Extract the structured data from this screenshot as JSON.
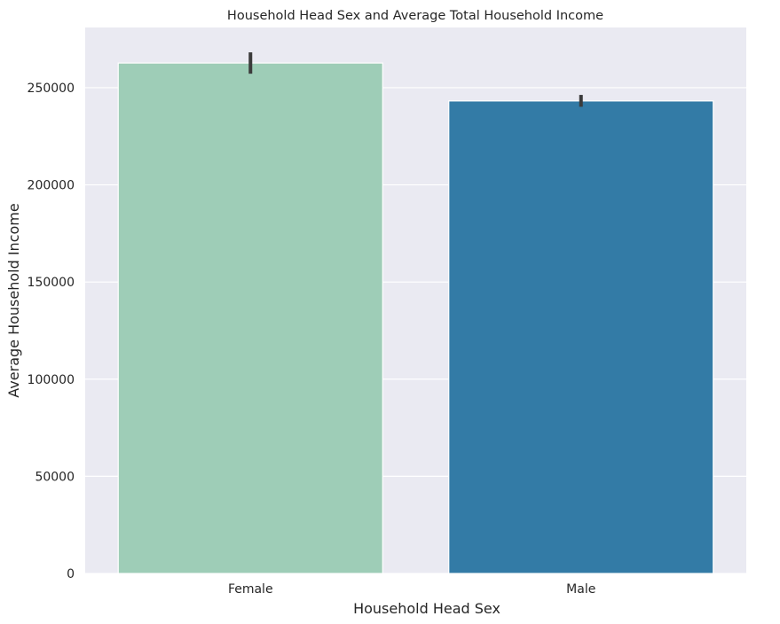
{
  "chart_data": {
    "type": "bar",
    "title": "Household Head Sex and Average Total Household Income",
    "xlabel": "Household Head Sex",
    "ylabel": "Average Household Income",
    "categories": [
      "Female",
      "Male"
    ],
    "values": [
      262700,
      243200
    ],
    "error_bars": [
      [
        257200,
        268200
      ],
      [
        240200,
        246300
      ]
    ],
    "ylim": [
      0,
      281000
    ],
    "yticks": [
      0,
      50000,
      100000,
      150000,
      200000,
      250000
    ],
    "ytick_labels": [
      "0",
      "50000",
      "100000",
      "150000",
      "200000",
      "250000"
    ],
    "grid": true,
    "legend": "none",
    "colors": {
      "bars": [
        "#9ecdb7",
        "#337ba6"
      ],
      "background": "#eaeaf2",
      "grid": "#ffffff",
      "error_bar": "#3b3b3b"
    }
  }
}
